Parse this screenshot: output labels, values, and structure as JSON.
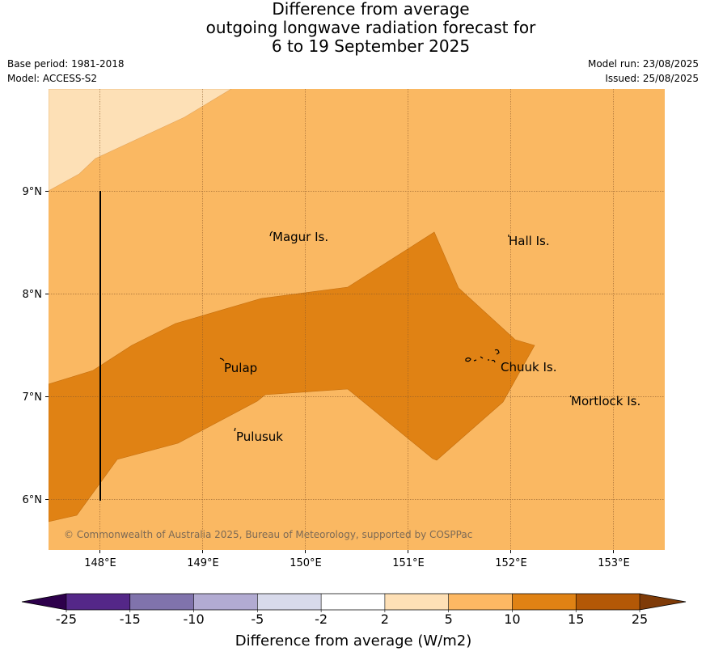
{
  "title": {
    "line1": "Difference from average",
    "line2": "outgoing longwave radiation forecast for",
    "line3": "6 to 19 September 2025"
  },
  "meta": {
    "base_period": "Base period: 1981-2018",
    "model": "Model: ACCESS-S2",
    "model_run": "Model run: 23/08/2025",
    "issued": "Issued: 25/08/2025"
  },
  "map": {
    "lat_labels": [
      "9°N",
      "8°N",
      "7°N",
      "6°N"
    ],
    "lon_labels": [
      "148°E",
      "149°E",
      "150°E",
      "151°E",
      "152°E",
      "153°E"
    ],
    "places": [
      "Magur Is.",
      "Hall Is.",
      "Pulap",
      "Chuuk Is.",
      "Mortlock Is.",
      "Pulusuk"
    ],
    "copyright": "© Commonwealth of Australia 2025, Bureau of Meteorology, supported by COSPPac",
    "colors": {
      "band_2_5": "#fde0b6",
      "band_5_10": "#fab862",
      "band_10_15": "#e08214"
    }
  },
  "colorbar": {
    "ticks": [
      "-25",
      "-15",
      "-10",
      "-5",
      "-2",
      "2",
      "5",
      "10",
      "15",
      "25"
    ],
    "label": "Difference from average (W/m2)",
    "colors": [
      "#2d004b",
      "#542788",
      "#8073ac",
      "#b2abd2",
      "#d8daeb",
      "#ffffff",
      "#fee0b6",
      "#fdb863",
      "#e08214",
      "#b35806",
      "#7f3b08"
    ]
  }
}
